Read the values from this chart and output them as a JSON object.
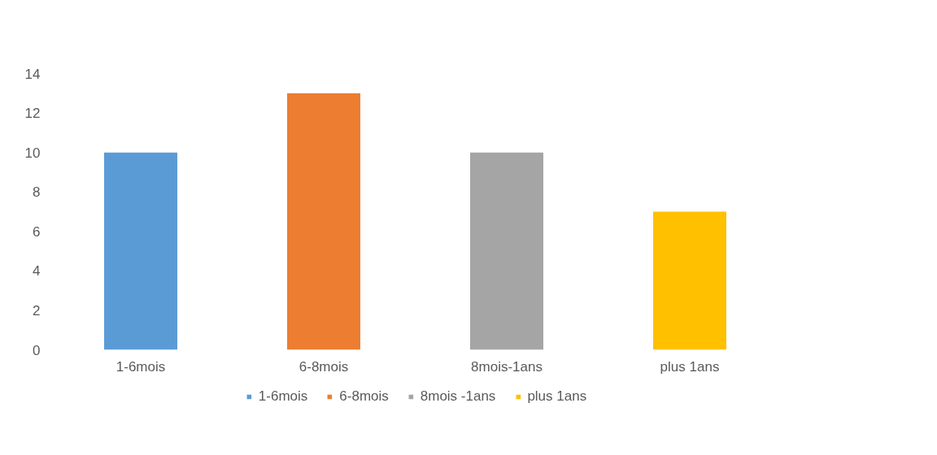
{
  "chart_data": {
    "type": "bar",
    "categories": [
      "1-6mois",
      "6-8mois",
      "8mois-1ans",
      "plus 1ans"
    ],
    "series": [
      {
        "name": "1-6mois",
        "color": "#5b9bd5",
        "values": [
          10,
          null,
          null,
          null
        ]
      },
      {
        "name": "6-8mois",
        "color": "#ed7d31",
        "values": [
          null,
          13,
          null,
          null
        ]
      },
      {
        "name": "8mois -1ans",
        "color": "#a5a5a5",
        "values": [
          null,
          null,
          10,
          null
        ]
      },
      {
        "name": "plus 1ans",
        "color": "#ffc000",
        "values": [
          null,
          null,
          null,
          7
        ]
      }
    ],
    "ylim": [
      0,
      14
    ],
    "yticks": [
      0,
      2,
      4,
      6,
      8,
      10,
      12,
      14
    ],
    "grid": false,
    "legend": "bottom"
  }
}
